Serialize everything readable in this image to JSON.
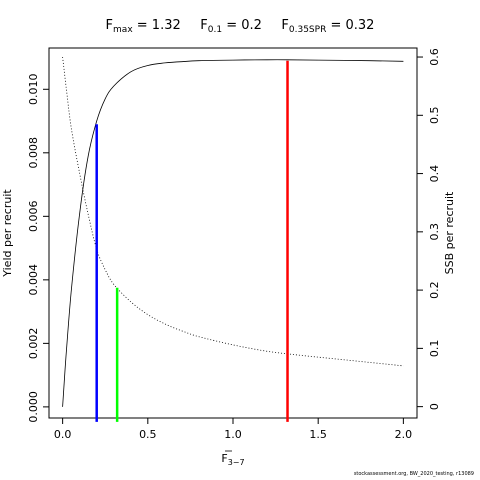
{
  "chart_data": {
    "type": "line",
    "title_parts": [
      {
        "base": "F",
        "sub": "max",
        "value": "1.32"
      },
      {
        "base": "F",
        "sub": "0.1",
        "value": "0.2"
      },
      {
        "base": "F",
        "sub": "0.35SPR",
        "value": "0.32"
      }
    ],
    "xlabel": {
      "base": "F",
      "sub": "3−7"
    },
    "ylabel_left": "Yield per recruit",
    "ylabel_right": "SSB per recruit",
    "xlim": [
      -0.08,
      2.08
    ],
    "ylim_left": [
      -0.00035,
      0.0113
    ],
    "ylim_right": [
      -0.0195,
      0.6155
    ],
    "x_ticks": [
      0,
      0.5,
      1,
      1.5,
      2
    ],
    "x_tick_labels": [
      "0.0",
      "0.5",
      "1.0",
      "1.5",
      "2.0"
    ],
    "y_left_ticks": [
      0,
      0.002,
      0.004,
      0.006,
      0.008,
      0.01
    ],
    "y_left_tick_labels": [
      "0.000",
      "0.002",
      "0.004",
      "0.006",
      "0.008",
      "0.010"
    ],
    "y_right_ticks": [
      0,
      0.1,
      0.2,
      0.3,
      0.4,
      0.5,
      0.6
    ],
    "y_right_tick_labels": [
      "0",
      "0.1",
      "0.2",
      "0.3",
      "0.4",
      "0.5",
      "0.6"
    ],
    "series": [
      {
        "axis": "left",
        "style": "solid",
        "x": [
          0,
          0.02,
          0.05,
          0.1,
          0.15,
          0.2,
          0.25,
          0.3,
          0.4,
          0.5,
          0.6,
          0.7,
          0.8,
          1.0,
          1.2,
          1.32,
          1.5,
          1.8,
          2.0
        ],
        "y": [
          0,
          0.0016,
          0.0036,
          0.0061,
          0.0079,
          0.009,
          0.0097,
          0.0101,
          0.01055,
          0.01075,
          0.01083,
          0.01087,
          0.0109,
          0.01092,
          0.01093,
          0.01093,
          0.01092,
          0.0109,
          0.01088
        ]
      },
      {
        "axis": "right",
        "style": "dotted",
        "x": [
          0,
          0.02,
          0.05,
          0.1,
          0.15,
          0.2,
          0.25,
          0.3,
          0.4,
          0.5,
          0.6,
          0.7,
          0.8,
          1.0,
          1.2,
          1.4,
          1.6,
          1.8,
          2.0
        ],
        "y": [
          0.6,
          0.55,
          0.48,
          0.4,
          0.33,
          0.27,
          0.235,
          0.21,
          0.18,
          0.158,
          0.142,
          0.13,
          0.12,
          0.106,
          0.095,
          0.088,
          0.082,
          0.076,
          0.07
        ]
      }
    ],
    "reference_lines": [
      {
        "x": 0.2,
        "ytop": 0.0089,
        "color": "#0000ff"
      },
      {
        "x": 0.32,
        "ytop": 0.00375,
        "color": "#00ff00"
      },
      {
        "x": 1.32,
        "ytop": 0.0109,
        "color": "#ff0000"
      }
    ]
  },
  "footer": "stockassessment.org, BW_2020_testing, r13089"
}
